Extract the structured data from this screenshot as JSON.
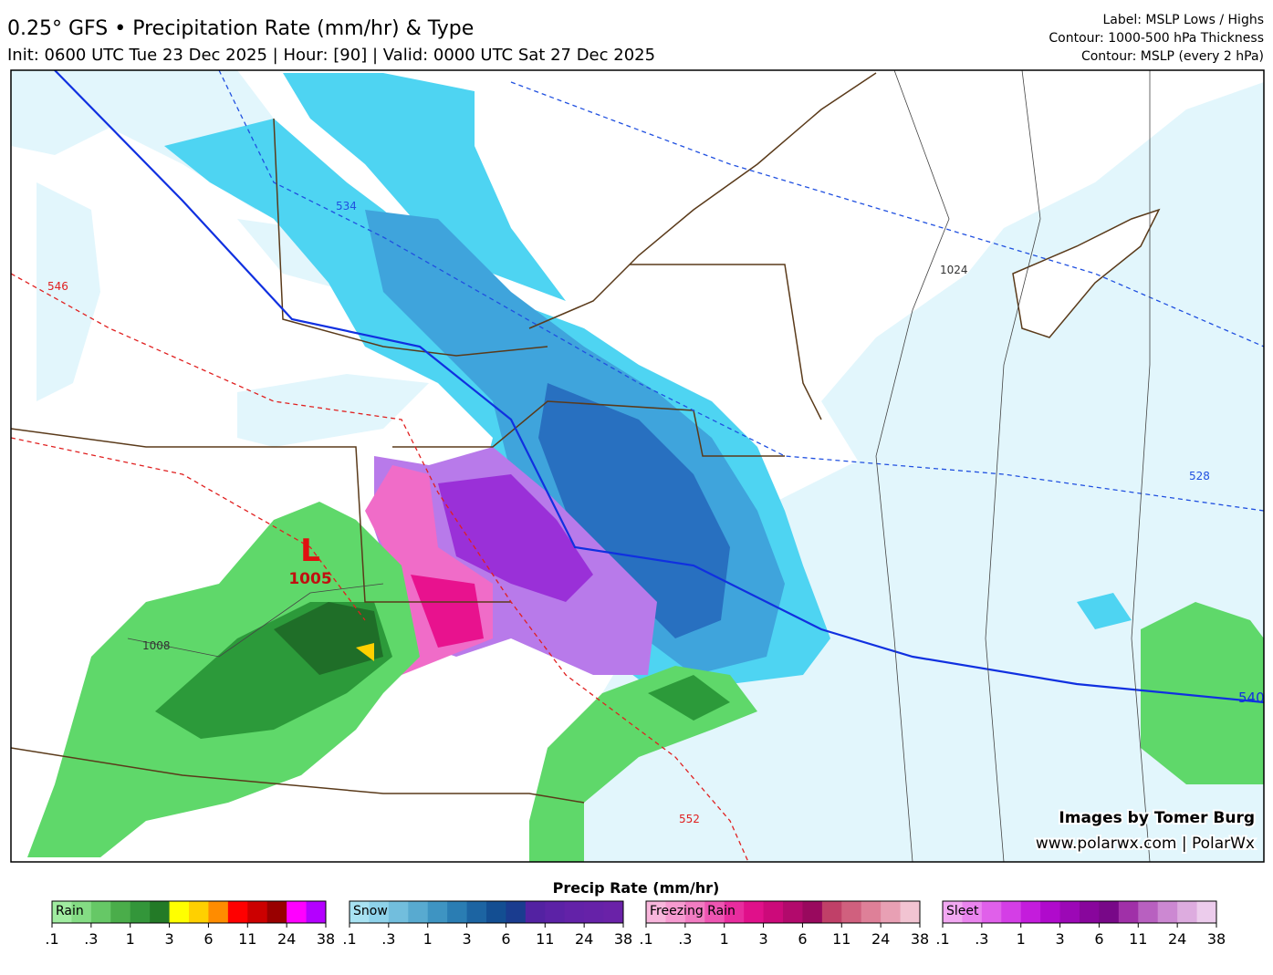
{
  "header": {
    "title": "0.25° GFS • Precipitation Rate (mm/hr) & Type",
    "subtitle": "Init: 0600 UTC Tue 23 Dec 2025 | Hour: [90] | Valid: 0000 UTC Sat 27 Dec 2025",
    "info": [
      "Label: MSLP Lows / Highs",
      "Contour: 1000-500 hPa Thickness",
      "Contour: MSLP (every 2 hPa)"
    ]
  },
  "map": {
    "low": {
      "symbol": "L",
      "pressure": "1005"
    },
    "contour_labels": [
      "534",
      "546",
      "1024",
      "1008",
      "528",
      "552",
      "540"
    ],
    "credits": [
      "Images by Tomer Burg",
      "www.polarwx.com | PolarWx"
    ]
  },
  "colorbar": {
    "title": "Precip Rate (mm/hr)",
    "scales": [
      {
        "name": "Rain",
        "colors": [
          "#a0eca0",
          "#84dc84",
          "#66c866",
          "#4aad4a",
          "#33963a",
          "#237a27",
          "#ffff00",
          "#ffd000",
          "#ff8c00",
          "#ff0000",
          "#cc0000",
          "#990000",
          "#ff00ff",
          "#b400ff"
        ],
        "ticks": [
          ".1",
          ".3",
          "1",
          "3",
          "6",
          "11",
          "24",
          "38"
        ]
      },
      {
        "name": "Snow",
        "colors": [
          "#a8e2f2",
          "#8ed2ea",
          "#72bedd",
          "#58aad0",
          "#3e94c2",
          "#2a7db3",
          "#1c64a2",
          "#134e92",
          "#1a3c8f",
          "#5322a2",
          "#5c22a6",
          "#6322a8",
          "#6622a8",
          "#6a22a8"
        ],
        "ticks": [
          ".1",
          ".3",
          "1",
          "3",
          "6",
          "11",
          "24",
          "38"
        ]
      },
      {
        "name": "Freezing Rain",
        "colors": [
          "#f8b6dc",
          "#f69ad0",
          "#f27cc2",
          "#ee55b2",
          "#e82c9e",
          "#e0108a",
          "#cc0a7a",
          "#b20a6c",
          "#99095e",
          "#c04068",
          "#d0607e",
          "#de8098",
          "#e8a0b4",
          "#f2c4d2"
        ],
        "ticks": [
          ".1",
          ".3",
          "1",
          "3",
          "6",
          "11",
          "24",
          "38"
        ]
      },
      {
        "name": "Sleet",
        "colors": [
          "#f2a8f2",
          "#ea84ee",
          "#e060ea",
          "#d43ee6",
          "#c41cdc",
          "#b00acc",
          "#9c08b6",
          "#88069c",
          "#780888",
          "#a030a8",
          "#b860c0",
          "#cc88d2",
          "#ddacdf",
          "#ecccec"
        ],
        "ticks": [
          ".1",
          ".3",
          "1",
          "3",
          "6",
          "11",
          "24",
          "38"
        ]
      }
    ]
  }
}
